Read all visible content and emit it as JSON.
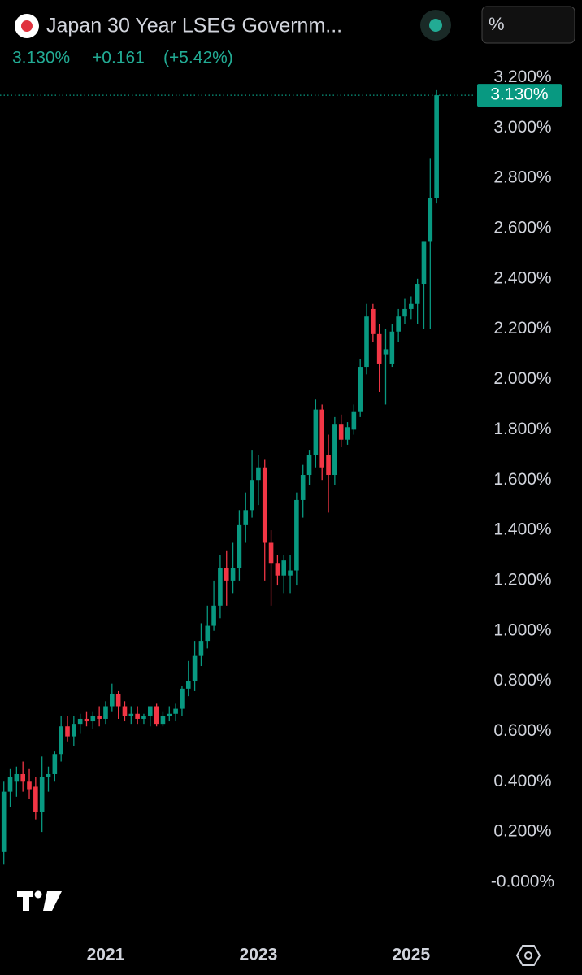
{
  "chart_data": {
    "type": "candlestick",
    "header": {
      "title": "Japan 30 Year LSEG Governm...",
      "price": "3.130%",
      "change": "+0.161",
      "change_pct": "(+5.42%)",
      "unit_button": "%"
    },
    "up_color": "#089981",
    "down_color": "#f23645",
    "categories": [
      null,
      null,
      null,
      null,
      null,
      null,
      null,
      null,
      null,
      null,
      null,
      null,
      null,
      null,
      null,
      null,
      "2021",
      null,
      null,
      null,
      null,
      null,
      null,
      null,
      null,
      null,
      null,
      null,
      null,
      null,
      null,
      null,
      null,
      null,
      null,
      null,
      null,
      null,
      null,
      null,
      "2023",
      null,
      null,
      null,
      null,
      null,
      null,
      null,
      null,
      null,
      null,
      null,
      null,
      null,
      null,
      null,
      null,
      null,
      null,
      null,
      null,
      null,
      null,
      null,
      "2025",
      null,
      null,
      null,
      null
    ],
    "open": [
      0.12,
      0.36,
      0.4,
      0.43,
      0.4,
      0.38,
      0.28,
      0.42,
      0.43,
      0.51,
      0.62,
      0.58,
      0.63,
      0.65,
      0.64,
      0.66,
      0.65,
      0.7,
      0.75,
      0.7,
      0.66,
      0.67,
      0.65,
      0.66,
      0.7,
      0.63,
      0.66,
      0.67,
      0.69,
      0.77,
      0.8,
      0.9,
      0.96,
      1.02,
      1.1,
      1.25,
      1.2,
      1.25,
      1.42,
      1.48,
      1.6,
      1.65,
      1.35,
      1.27,
      1.22,
      1.22,
      1.24,
      1.52,
      1.62,
      1.7,
      1.88,
      1.7,
      1.62,
      1.82,
      1.76,
      1.8,
      1.87,
      2.05,
      2.28,
      2.18,
      2.1,
      2.06,
      2.19,
      2.25,
      2.28,
      2.3,
      2.38,
      2.55,
      2.72
    ],
    "high": [
      0.4,
      0.45,
      0.46,
      0.48,
      0.45,
      0.42,
      0.5,
      0.46,
      0.52,
      0.66,
      0.66,
      0.66,
      0.67,
      0.68,
      0.68,
      0.7,
      0.72,
      0.79,
      0.76,
      0.72,
      0.7,
      0.7,
      0.67,
      0.7,
      0.71,
      0.68,
      0.7,
      0.71,
      0.78,
      0.88,
      0.96,
      1.03,
      1.1,
      1.2,
      1.3,
      1.32,
      1.35,
      1.48,
      1.55,
      1.72,
      1.7,
      1.68,
      1.4,
      1.3,
      1.3,
      1.3,
      1.55,
      1.66,
      1.72,
      1.92,
      1.9,
      1.78,
      1.85,
      1.86,
      1.83,
      1.9,
      2.08,
      2.3,
      2.3,
      2.22,
      2.2,
      2.22,
      2.28,
      2.32,
      2.33,
      2.4,
      2.55,
      2.88,
      3.15
    ],
    "low": [
      0.07,
      0.3,
      0.34,
      0.36,
      0.33,
      0.25,
      0.2,
      0.36,
      0.4,
      0.48,
      0.56,
      0.54,
      0.59,
      0.62,
      0.61,
      0.62,
      0.63,
      0.68,
      0.65,
      0.64,
      0.63,
      0.63,
      0.63,
      0.62,
      0.62,
      0.62,
      0.64,
      0.64,
      0.66,
      0.74,
      0.76,
      0.86,
      0.93,
      1.0,
      1.05,
      1.1,
      1.15,
      1.2,
      1.35,
      1.45,
      1.5,
      1.2,
      1.1,
      1.18,
      1.15,
      1.15,
      1.18,
      1.45,
      1.58,
      1.65,
      1.6,
      1.47,
      1.58,
      1.73,
      1.74,
      1.78,
      1.85,
      2.02,
      2.15,
      1.95,
      1.9,
      2.05,
      2.15,
      2.22,
      2.24,
      2.22,
      2.2,
      2.2,
      2.7
    ],
    "close": [
      0.36,
      0.42,
      0.43,
      0.4,
      0.37,
      0.28,
      0.42,
      0.43,
      0.51,
      0.62,
      0.58,
      0.63,
      0.65,
      0.64,
      0.66,
      0.65,
      0.7,
      0.75,
      0.7,
      0.66,
      0.67,
      0.65,
      0.66,
      0.7,
      0.63,
      0.66,
      0.67,
      0.69,
      0.77,
      0.8,
      0.9,
      0.96,
      1.02,
      1.1,
      1.25,
      1.2,
      1.25,
      1.42,
      1.48,
      1.6,
      1.65,
      1.35,
      1.27,
      1.22,
      1.28,
      1.24,
      1.52,
      1.62,
      1.7,
      1.88,
      1.65,
      1.62,
      1.82,
      1.76,
      1.81,
      1.87,
      2.05,
      2.25,
      2.18,
      2.06,
      2.12,
      2.19,
      2.25,
      2.28,
      2.3,
      2.38,
      2.55,
      2.72,
      3.13
    ],
    "ylim": [
      -0.06,
      3.25
    ],
    "yticks": [
      {
        "value": 3.2,
        "label": "3.200%"
      },
      {
        "value": 3.0,
        "label": "3.000%"
      },
      {
        "value": 2.8,
        "label": "2.800%"
      },
      {
        "value": 2.6,
        "label": "2.600%"
      },
      {
        "value": 2.4,
        "label": "2.400%"
      },
      {
        "value": 2.2,
        "label": "2.200%"
      },
      {
        "value": 2.0,
        "label": "2.000%"
      },
      {
        "value": 1.8,
        "label": "1.800%"
      },
      {
        "value": 1.6,
        "label": "1.600%"
      },
      {
        "value": 1.4,
        "label": "1.400%"
      },
      {
        "value": 1.2,
        "label": "1.200%"
      },
      {
        "value": 1.0,
        "label": "1.000%"
      },
      {
        "value": 0.8,
        "label": "0.800%"
      },
      {
        "value": 0.6,
        "label": "0.600%"
      },
      {
        "value": 0.4,
        "label": "0.400%"
      },
      {
        "value": 0.2,
        "label": "0.200%"
      },
      {
        "value": 0,
        "label": "-0.000%"
      }
    ]
  }
}
